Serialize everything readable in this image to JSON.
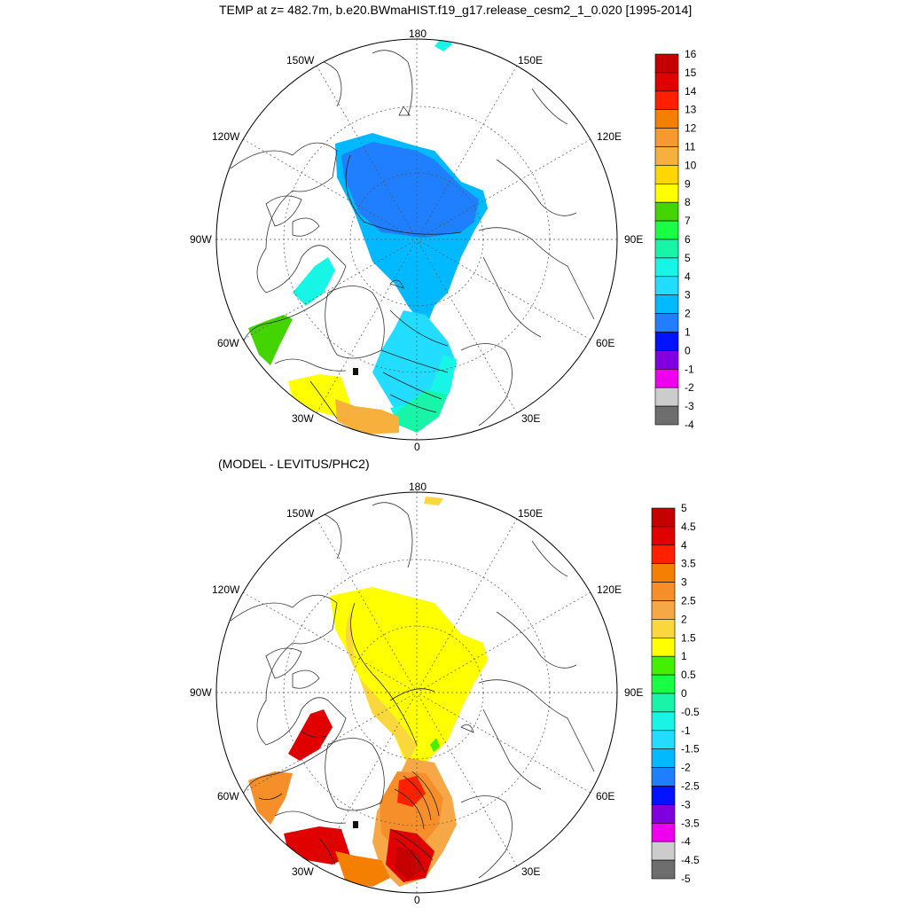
{
  "title": "TEMP at z= 482.7m, b.e20.BWmaHIST.f19_g17.release_cesm2_1_0.020 [1995-2014]",
  "subtitle": "(MODEL - LEVITUS/PHC2)",
  "map_labels": {
    "lon180": "180",
    "lon0": "0",
    "w150": "150W",
    "e150": "150E",
    "w120": "120W",
    "e120": "120E",
    "w90": "90W",
    "e90": "90E",
    "w60": "60W",
    "e60": "60E",
    "w30": "30W",
    "e30": "30E"
  },
  "colorbar_top": {
    "labels": [
      "16",
      "15",
      "14",
      "13",
      "12",
      "11",
      "10",
      "9",
      "8",
      "7",
      "6",
      "5",
      "4",
      "3",
      "2",
      "1",
      "0",
      "-1",
      "-2",
      "-3",
      "-4"
    ],
    "colors": [
      "#c40000",
      "#e00000",
      "#ff2000",
      "#f57f00",
      "#f69a2f",
      "#f7b03c",
      "#ffd700",
      "#ffff00",
      "#44d500",
      "#19ff44",
      "#18f5a8",
      "#17f5e6",
      "#22ddff",
      "#00b9ff",
      "#1f7fff",
      "#0012ff",
      "#8000e0",
      "#ee00ee",
      "#cccccc",
      "#6e6e6e"
    ]
  },
  "colorbar_bottom": {
    "labels": [
      "5",
      "4.5",
      "4",
      "3.5",
      "3",
      "2.5",
      "2",
      "1.5",
      "1",
      "0.5",
      "0",
      "-0.5",
      "-1",
      "-1.5",
      "-2",
      "-2.5",
      "-3",
      "-3.5",
      "-4",
      "-4.5",
      "-5"
    ],
    "colors": [
      "#c40000",
      "#e00000",
      "#ff2000",
      "#f57f00",
      "#f68f2a",
      "#f7a846",
      "#fad73c",
      "#ffff00",
      "#44f000",
      "#19ff44",
      "#18f5a8",
      "#17f5e6",
      "#22ddff",
      "#00b9ff",
      "#1f7fff",
      "#0012ff",
      "#8000e0",
      "#ee00ee",
      "#cccccc",
      "#6e6e6e"
    ]
  },
  "colors": {
    "land_line": "#333333",
    "grid_line": "#555555"
  }
}
